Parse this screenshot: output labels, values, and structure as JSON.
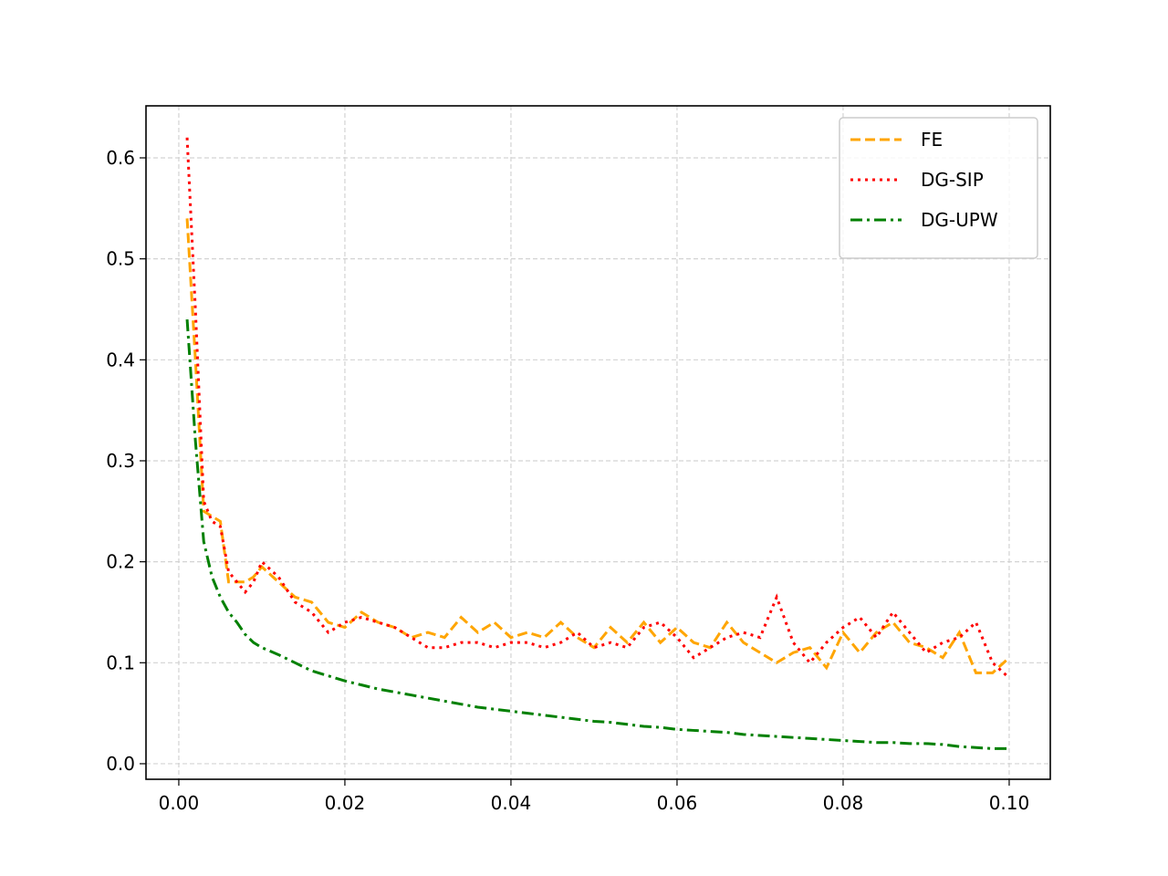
{
  "chart_data": {
    "type": "line",
    "x": [
      0.001,
      0.002,
      0.003,
      0.004,
      0.005,
      0.006,
      0.007,
      0.008,
      0.009,
      0.01,
      0.012,
      0.014,
      0.016,
      0.018,
      0.02,
      0.022,
      0.024,
      0.026,
      0.028,
      0.03,
      0.032,
      0.034,
      0.036,
      0.038,
      0.04,
      0.042,
      0.044,
      0.046,
      0.048,
      0.05,
      0.052,
      0.054,
      0.056,
      0.058,
      0.06,
      0.062,
      0.064,
      0.066,
      0.068,
      0.07,
      0.072,
      0.074,
      0.076,
      0.078,
      0.08,
      0.082,
      0.084,
      0.086,
      0.088,
      0.09,
      0.092,
      0.094,
      0.096,
      0.098,
      0.1
    ],
    "series": [
      {
        "name": "FE",
        "color": "orange",
        "linestyle": "dashed",
        "values": [
          0.54,
          0.4,
          0.25,
          0.245,
          0.24,
          0.18,
          0.18,
          0.18,
          0.185,
          0.195,
          0.18,
          0.165,
          0.16,
          0.14,
          0.135,
          0.15,
          0.14,
          0.135,
          0.125,
          0.13,
          0.125,
          0.145,
          0.13,
          0.14,
          0.125,
          0.13,
          0.125,
          0.14,
          0.125,
          0.115,
          0.135,
          0.12,
          0.14,
          0.12,
          0.135,
          0.12,
          0.115,
          0.14,
          0.12,
          0.11,
          0.1,
          0.11,
          0.115,
          0.095,
          0.13,
          0.11,
          0.13,
          0.14,
          0.12,
          0.115,
          0.105,
          0.13,
          0.09,
          0.09,
          0.105
        ]
      },
      {
        "name": "DG-SIP",
        "color": "red",
        "linestyle": "dotted",
        "values": [
          0.62,
          0.45,
          0.26,
          0.24,
          0.235,
          0.19,
          0.18,
          0.17,
          0.18,
          0.2,
          0.185,
          0.16,
          0.15,
          0.13,
          0.14,
          0.145,
          0.14,
          0.135,
          0.125,
          0.115,
          0.115,
          0.12,
          0.12,
          0.115,
          0.12,
          0.12,
          0.115,
          0.12,
          0.13,
          0.115,
          0.12,
          0.115,
          0.135,
          0.14,
          0.125,
          0.105,
          0.115,
          0.125,
          0.13,
          0.125,
          0.165,
          0.12,
          0.1,
          0.12,
          0.135,
          0.145,
          0.125,
          0.15,
          0.13,
          0.11,
          0.12,
          0.125,
          0.14,
          0.1,
          0.085
        ]
      },
      {
        "name": "DG-UPW",
        "color": "green",
        "linestyle": "dashdot",
        "values": [
          0.44,
          0.32,
          0.22,
          0.185,
          0.165,
          0.15,
          0.14,
          0.128,
          0.12,
          0.115,
          0.108,
          0.1,
          0.092,
          0.087,
          0.082,
          0.078,
          0.074,
          0.071,
          0.068,
          0.065,
          0.062,
          0.059,
          0.056,
          0.054,
          0.052,
          0.05,
          0.048,
          0.046,
          0.044,
          0.042,
          0.041,
          0.039,
          0.037,
          0.036,
          0.034,
          0.033,
          0.032,
          0.031,
          0.029,
          0.028,
          0.027,
          0.026,
          0.025,
          0.024,
          0.023,
          0.022,
          0.021,
          0.021,
          0.02,
          0.02,
          0.019,
          0.017,
          0.016,
          0.015,
          0.015
        ]
      }
    ],
    "xlim": [
      -0.00395,
      0.10495
    ],
    "ylim": [
      -0.0154,
      0.6515
    ],
    "xticks": [
      {
        "value": 0,
        "label": "0.00"
      },
      0.02,
      0.04,
      0.06,
      0.08,
      {
        "value": 0.1,
        "label": "0.10"
      }
    ],
    "yticks": [
      {
        "value": 0,
        "label": "0.0"
      },
      0.1,
      0.2,
      0.3,
      0.4,
      0.5,
      0.6
    ],
    "grid": true,
    "legend": "upper right"
  }
}
